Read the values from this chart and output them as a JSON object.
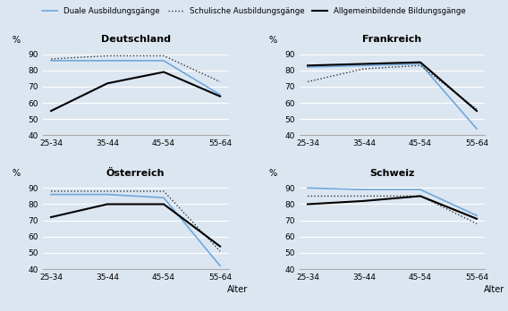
{
  "x_labels": [
    "25-34",
    "35-44",
    "45-54",
    "55-64"
  ],
  "x_label": "Alter",
  "y_label": "%",
  "ylim": [
    40,
    95
  ],
  "yticks": [
    40,
    50,
    60,
    70,
    80,
    90
  ],
  "background_color": "#dce6f1",
  "subplots": [
    {
      "title": "Deutschland",
      "duale": [
        86,
        86,
        86,
        65
      ],
      "schulische": [
        87,
        89,
        89,
        73
      ],
      "allgemein": [
        55,
        72,
        79,
        64
      ]
    },
    {
      "title": "Frankreich",
      "duale": [
        82,
        83,
        84,
        44
      ],
      "schulische": [
        73,
        81,
        83,
        56
      ],
      "allgemein": [
        83,
        84,
        85,
        55
      ]
    },
    {
      "title": "Österreich",
      "duale": [
        86,
        86,
        84,
        42
      ],
      "schulische": [
        88,
        88,
        88,
        51
      ],
      "allgemein": [
        72,
        80,
        80,
        54
      ]
    },
    {
      "title": "Schweiz",
      "duale": [
        90,
        89,
        89,
        73
      ],
      "schulische": [
        85,
        85,
        85,
        68
      ],
      "allgemein": [
        80,
        82,
        85,
        71
      ]
    }
  ],
  "legend": {
    "duale": "Duale Ausbildungsgänge",
    "schulische": "Schulische Ausbildungsgänge",
    "allgemein": "Allgemeinbildende Bildungsgänge"
  },
  "colors": {
    "duale": "#6fa8dc",
    "schulische": "#333333",
    "allgemein": "#000000"
  }
}
